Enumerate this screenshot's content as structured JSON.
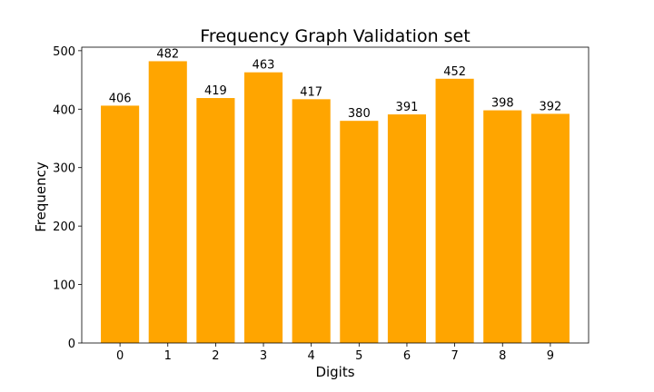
{
  "chart_data": {
    "type": "bar",
    "title": "Frequency Graph Validation set",
    "xlabel": "Digits",
    "ylabel": "Frequency",
    "categories": [
      "0",
      "1",
      "2",
      "3",
      "4",
      "5",
      "6",
      "7",
      "8",
      "9"
    ],
    "values": [
      406,
      482,
      419,
      463,
      417,
      380,
      391,
      452,
      398,
      392
    ],
    "data_labels": [
      "406",
      "482",
      "419",
      "463",
      "417",
      "380",
      "391",
      "452",
      "398",
      "392"
    ],
    "ylim": [
      0,
      506
    ],
    "yticks": [
      0,
      100,
      200,
      300,
      400,
      500
    ],
    "ytick_labels": [
      "0",
      "100",
      "200",
      "300",
      "400",
      "500"
    ],
    "grid": false,
    "bar_color": "#ffa500"
  }
}
